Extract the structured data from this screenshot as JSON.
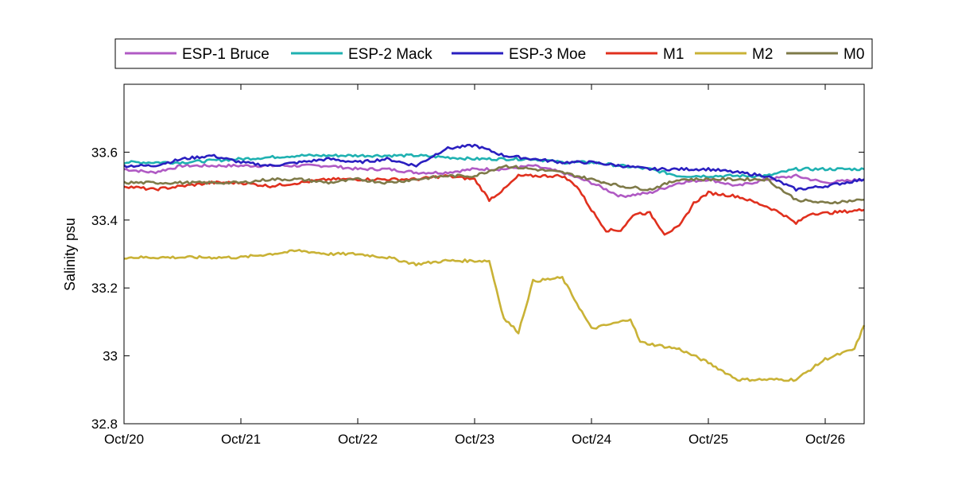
{
  "chart_data": {
    "type": "line",
    "title": "",
    "xlabel": "",
    "ylabel": "Salinity psu",
    "x_ticks": [
      "Oct/20",
      "Oct/21",
      "Oct/22",
      "Oct/23",
      "Oct/24",
      "Oct/25",
      "Oct/26"
    ],
    "xlim": [
      "Oct/20 00:00",
      "Oct/26 08:00"
    ],
    "ylim": [
      32.8,
      33.8
    ],
    "y_ticks": [
      32.8,
      33.0,
      33.2,
      33.4,
      33.6
    ],
    "y_tick_labels": [
      "32.8",
      "33",
      "33.2",
      "33.4",
      "33.6"
    ],
    "grid": false,
    "legend_position": "top-outside",
    "series": [
      {
        "name": "ESP-1 Bruce",
        "color": "#b05ac4",
        "points": [
          [
            "Oct/20 00:00",
            33.55
          ],
          [
            "Oct/20 06:00",
            33.54
          ],
          [
            "Oct/20 12:00",
            33.56
          ],
          [
            "Oct/20 18:00",
            33.56
          ],
          [
            "Oct/21 00:00",
            33.56
          ],
          [
            "Oct/21 06:00",
            33.56
          ],
          [
            "Oct/21 12:00",
            33.56
          ],
          [
            "Oct/21 18:00",
            33.56
          ],
          [
            "Oct/22 00:00",
            33.55
          ],
          [
            "Oct/22 06:00",
            33.55
          ],
          [
            "Oct/22 12:00",
            33.54
          ],
          [
            "Oct/22 18:00",
            33.54
          ],
          [
            "Oct/23 00:00",
            33.55
          ],
          [
            "Oct/23 06:00",
            33.55
          ],
          [
            "Oct/23 12:00",
            33.56
          ],
          [
            "Oct/23 18:00",
            33.54
          ],
          [
            "Oct/24 00:00",
            33.51
          ],
          [
            "Oct/24 06:00",
            33.47
          ],
          [
            "Oct/24 12:00",
            33.48
          ],
          [
            "Oct/24 18:00",
            33.51
          ],
          [
            "Oct/25 00:00",
            33.52
          ],
          [
            "Oct/25 06:00",
            33.5
          ],
          [
            "Oct/25 12:00",
            33.52
          ],
          [
            "Oct/25 18:00",
            33.53
          ],
          [
            "Oct/26 00:00",
            33.51
          ],
          [
            "Oct/26 08:00",
            33.52
          ]
        ]
      },
      {
        "name": "ESP-2 Mack",
        "color": "#1fb1b1",
        "points": [
          [
            "Oct/20 00:00",
            33.57
          ],
          [
            "Oct/20 12:00",
            33.57
          ],
          [
            "Oct/21 00:00",
            33.58
          ],
          [
            "Oct/21 12:00",
            33.59
          ],
          [
            "Oct/22 00:00",
            33.59
          ],
          [
            "Oct/22 12:00",
            33.59
          ],
          [
            "Oct/23 00:00",
            33.58
          ],
          [
            "Oct/23 12:00",
            33.58
          ],
          [
            "Oct/23 18:00",
            33.57
          ],
          [
            "Oct/24 00:00",
            33.57
          ],
          [
            "Oct/24 12:00",
            33.55
          ],
          [
            "Oct/24 18:00",
            33.53
          ],
          [
            "Oct/25 00:00",
            33.53
          ],
          [
            "Oct/25 12:00",
            33.53
          ],
          [
            "Oct/25 18:00",
            33.55
          ],
          [
            "Oct/26 00:00",
            33.55
          ],
          [
            "Oct/26 08:00",
            33.55
          ]
        ]
      },
      {
        "name": "ESP-3 Moe",
        "color": "#2a1fc0",
        "points": [
          [
            "Oct/20 00:00",
            33.56
          ],
          [
            "Oct/20 06:00",
            33.56
          ],
          [
            "Oct/20 12:00",
            33.58
          ],
          [
            "Oct/20 18:00",
            33.59
          ],
          [
            "Oct/21 00:00",
            33.57
          ],
          [
            "Oct/21 06:00",
            33.56
          ],
          [
            "Oct/21 12:00",
            33.57
          ],
          [
            "Oct/21 18:00",
            33.58
          ],
          [
            "Oct/22 00:00",
            33.57
          ],
          [
            "Oct/22 06:00",
            33.58
          ],
          [
            "Oct/22 12:00",
            33.56
          ],
          [
            "Oct/22 18:00",
            33.61
          ],
          [
            "Oct/23 00:00",
            33.62
          ],
          [
            "Oct/23 06:00",
            33.59
          ],
          [
            "Oct/23 12:00",
            33.58
          ],
          [
            "Oct/23 18:00",
            33.57
          ],
          [
            "Oct/24 00:00",
            33.57
          ],
          [
            "Oct/24 06:00",
            33.56
          ],
          [
            "Oct/24 12:00",
            33.55
          ],
          [
            "Oct/24 18:00",
            33.55
          ],
          [
            "Oct/25 00:00",
            33.55
          ],
          [
            "Oct/25 06:00",
            33.54
          ],
          [
            "Oct/25 12:00",
            33.53
          ],
          [
            "Oct/25 18:00",
            33.49
          ],
          [
            "Oct/26 00:00",
            33.5
          ],
          [
            "Oct/26 08:00",
            33.52
          ]
        ]
      },
      {
        "name": "M1",
        "color": "#e0301e",
        "points": [
          [
            "Oct/20 00:00",
            33.5
          ],
          [
            "Oct/20 06:00",
            33.49
          ],
          [
            "Oct/20 12:00",
            33.5
          ],
          [
            "Oct/20 18:00",
            33.51
          ],
          [
            "Oct/21 00:00",
            33.51
          ],
          [
            "Oct/21 06:00",
            33.5
          ],
          [
            "Oct/21 12:00",
            33.51
          ],
          [
            "Oct/21 18:00",
            33.52
          ],
          [
            "Oct/22 00:00",
            33.52
          ],
          [
            "Oct/22 06:00",
            33.52
          ],
          [
            "Oct/22 12:00",
            33.52
          ],
          [
            "Oct/22 18:00",
            33.53
          ],
          [
            "Oct/23 00:00",
            33.52
          ],
          [
            "Oct/23 03:00",
            33.46
          ],
          [
            "Oct/23 06:00",
            33.49
          ],
          [
            "Oct/23 09:00",
            33.53
          ],
          [
            "Oct/23 18:00",
            33.53
          ],
          [
            "Oct/23 21:00",
            33.5
          ],
          [
            "Oct/24 00:00",
            33.43
          ],
          [
            "Oct/24 03:00",
            33.37
          ],
          [
            "Oct/24 06:00",
            33.37
          ],
          [
            "Oct/24 09:00",
            33.42
          ],
          [
            "Oct/24 12:00",
            33.42
          ],
          [
            "Oct/24 15:00",
            33.36
          ],
          [
            "Oct/24 18:00",
            33.38
          ],
          [
            "Oct/24 21:00",
            33.45
          ],
          [
            "Oct/25 00:00",
            33.48
          ],
          [
            "Oct/25 06:00",
            33.47
          ],
          [
            "Oct/25 12:00",
            33.44
          ],
          [
            "Oct/25 15:00",
            33.42
          ],
          [
            "Oct/25 18:00",
            33.39
          ],
          [
            "Oct/25 21:00",
            33.42
          ],
          [
            "Oct/26 00:00",
            33.42
          ],
          [
            "Oct/26 08:00",
            33.43
          ]
        ]
      },
      {
        "name": "M2",
        "color": "#c9b236",
        "points": [
          [
            "Oct/20 00:00",
            33.29
          ],
          [
            "Oct/20 12:00",
            33.29
          ],
          [
            "Oct/21 00:00",
            33.29
          ],
          [
            "Oct/21 06:00",
            33.3
          ],
          [
            "Oct/21 12:00",
            33.31
          ],
          [
            "Oct/21 18:00",
            33.3
          ],
          [
            "Oct/22 00:00",
            33.3
          ],
          [
            "Oct/22 06:00",
            33.29
          ],
          [
            "Oct/22 12:00",
            33.27
          ],
          [
            "Oct/22 18:00",
            33.28
          ],
          [
            "Oct/23 00:00",
            33.28
          ],
          [
            "Oct/23 03:00",
            33.28
          ],
          [
            "Oct/23 06:00",
            33.11
          ],
          [
            "Oct/23 09:00",
            33.07
          ],
          [
            "Oct/23 12:00",
            33.22
          ],
          [
            "Oct/23 18:00",
            33.23
          ],
          [
            "Oct/24 00:00",
            33.08
          ],
          [
            "Oct/24 06:00",
            33.1
          ],
          [
            "Oct/24 08:00",
            33.11
          ],
          [
            "Oct/24 10:00",
            33.04
          ],
          [
            "Oct/24 18:00",
            33.02
          ],
          [
            "Oct/25 00:00",
            32.98
          ],
          [
            "Oct/25 06:00",
            32.93
          ],
          [
            "Oct/25 12:00",
            32.93
          ],
          [
            "Oct/25 18:00",
            32.93
          ],
          [
            "Oct/26 00:00",
            32.99
          ],
          [
            "Oct/26 06:00",
            33.02
          ],
          [
            "Oct/26 08:00",
            33.09
          ]
        ]
      },
      {
        "name": "M0",
        "color": "#7e7a48",
        "points": [
          [
            "Oct/20 00:00",
            33.51
          ],
          [
            "Oct/20 06:00",
            33.51
          ],
          [
            "Oct/20 12:00",
            33.51
          ],
          [
            "Oct/20 18:00",
            33.51
          ],
          [
            "Oct/21 00:00",
            33.51
          ],
          [
            "Oct/21 06:00",
            33.52
          ],
          [
            "Oct/21 12:00",
            33.52
          ],
          [
            "Oct/21 18:00",
            33.51
          ],
          [
            "Oct/22 00:00",
            33.52
          ],
          [
            "Oct/22 06:00",
            33.51
          ],
          [
            "Oct/22 12:00",
            33.52
          ],
          [
            "Oct/22 18:00",
            33.53
          ],
          [
            "Oct/23 00:00",
            33.53
          ],
          [
            "Oct/23 06:00",
            33.56
          ],
          [
            "Oct/23 12:00",
            33.55
          ],
          [
            "Oct/23 18:00",
            33.54
          ],
          [
            "Oct/24 00:00",
            33.52
          ],
          [
            "Oct/24 06:00",
            33.5
          ],
          [
            "Oct/24 12:00",
            33.49
          ],
          [
            "Oct/24 18:00",
            33.52
          ],
          [
            "Oct/25 00:00",
            33.52
          ],
          [
            "Oct/25 06:00",
            33.52
          ],
          [
            "Oct/25 12:00",
            33.52
          ],
          [
            "Oct/25 18:00",
            33.46
          ],
          [
            "Oct/26 00:00",
            33.45
          ],
          [
            "Oct/26 08:00",
            33.46
          ]
        ]
      }
    ]
  }
}
